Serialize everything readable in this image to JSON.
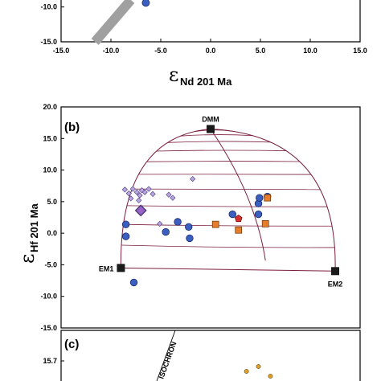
{
  "chart_data": [
    {
      "panel": "a",
      "type": "scatter",
      "xlabel": {
        "symbol": "ε",
        "subscript": "Nd 201 Ma"
      },
      "x_ticks": [
        "-15.0",
        "-10.0",
        "-5.0",
        "0.0",
        "5.0",
        "10.0",
        "15.0"
      ],
      "xlim": [
        -15,
        15
      ],
      "y_ticks": [
        "-10.0",
        "-15.0"
      ],
      "ylim_visible": [
        -15,
        -9
      ],
      "series": [
        {
          "marker": "circle",
          "color": "#3b5fc0",
          "points": [
            [
              -6.5,
              -9.4
            ]
          ]
        }
      ],
      "band": {
        "color": "#a0a0a0",
        "from": [
          -11.6,
          -15.0
        ],
        "to": [
          -8.0,
          -9.0
        ]
      }
    },
    {
      "panel": "b",
      "type": "scatter",
      "panel_label": "(b)",
      "ylabel": {
        "symbol": "ε",
        "subscript": "Hf 201 Ma"
      },
      "ylim": [
        -15,
        20
      ],
      "y_ticks": [
        "20.0",
        "15.0",
        "10.0",
        "5.0",
        "0.0",
        "-5.0",
        "-10.0",
        "-15.0"
      ],
      "xlim": [
        -15,
        15
      ],
      "end_members": [
        {
          "label": "DMM",
          "x": 0.0,
          "y": 16.5
        },
        {
          "label": "EM1",
          "x": -9.0,
          "y": -5.5
        },
        {
          "label": "EM2",
          "x": 12.5,
          "y": -6.0
        }
      ],
      "mixing_line_color": "#7a1f3d",
      "series": [
        {
          "marker": "diamond-small",
          "color": "#b9a6e0",
          "points": [
            [
              -8.6,
              6.9
            ],
            [
              -8.2,
              6.3
            ],
            [
              -7.8,
              7.0
            ],
            [
              -7.4,
              6.5
            ],
            [
              -7.1,
              6.0
            ],
            [
              -6.6,
              6.5
            ],
            [
              -6.2,
              7.0
            ],
            [
              -5.8,
              6.2
            ],
            [
              -8.0,
              5.5
            ],
            [
              -7.2,
              5.2
            ],
            [
              -6.9,
              6.8
            ],
            [
              -4.2,
              6.1
            ],
            [
              -3.8,
              5.6
            ],
            [
              -1.8,
              8.6
            ],
            [
              -5.1,
              1.5
            ]
          ]
        },
        {
          "marker": "diamond-large",
          "color": "#9a63c6",
          "points": [
            [
              -7.0,
              3.6
            ]
          ]
        },
        {
          "marker": "circle",
          "color": "#3b5fc0",
          "points": [
            [
              -8.5,
              1.4
            ],
            [
              -8.5,
              -0.5
            ],
            [
              -7.7,
              -7.8
            ],
            [
              -4.5,
              0.2
            ],
            [
              -3.3,
              1.8
            ],
            [
              -2.2,
              1.0
            ],
            [
              -2.1,
              -0.8
            ],
            [
              2.2,
              3.0
            ],
            [
              4.8,
              4.7
            ],
            [
              4.8,
              3.0
            ],
            [
              4.9,
              5.6
            ],
            [
              5.7,
              5.8
            ]
          ]
        },
        {
          "marker": "square",
          "color": "#e77c2a",
          "points": [
            [
              0.5,
              1.4
            ],
            [
              2.8,
              0.5
            ],
            [
              5.5,
              1.5
            ],
            [
              5.7,
              5.6
            ]
          ]
        },
        {
          "marker": "pentagon",
          "color": "#d42f2f",
          "points": [
            [
              2.8,
              2.3
            ]
          ]
        }
      ]
    },
    {
      "panel": "c",
      "type": "scatter",
      "panel_label": "(c)",
      "y_ticks": [
        "15.7"
      ],
      "annotations": [
        "ISOCHRON"
      ],
      "series": [
        {
          "marker": "circle",
          "color": "#e0a030",
          "points": [
            [
              0.62,
              0.4
            ],
            [
              0.66,
              0.6
            ],
            [
              0.7,
              0.2
            ]
          ]
        }
      ]
    }
  ]
}
